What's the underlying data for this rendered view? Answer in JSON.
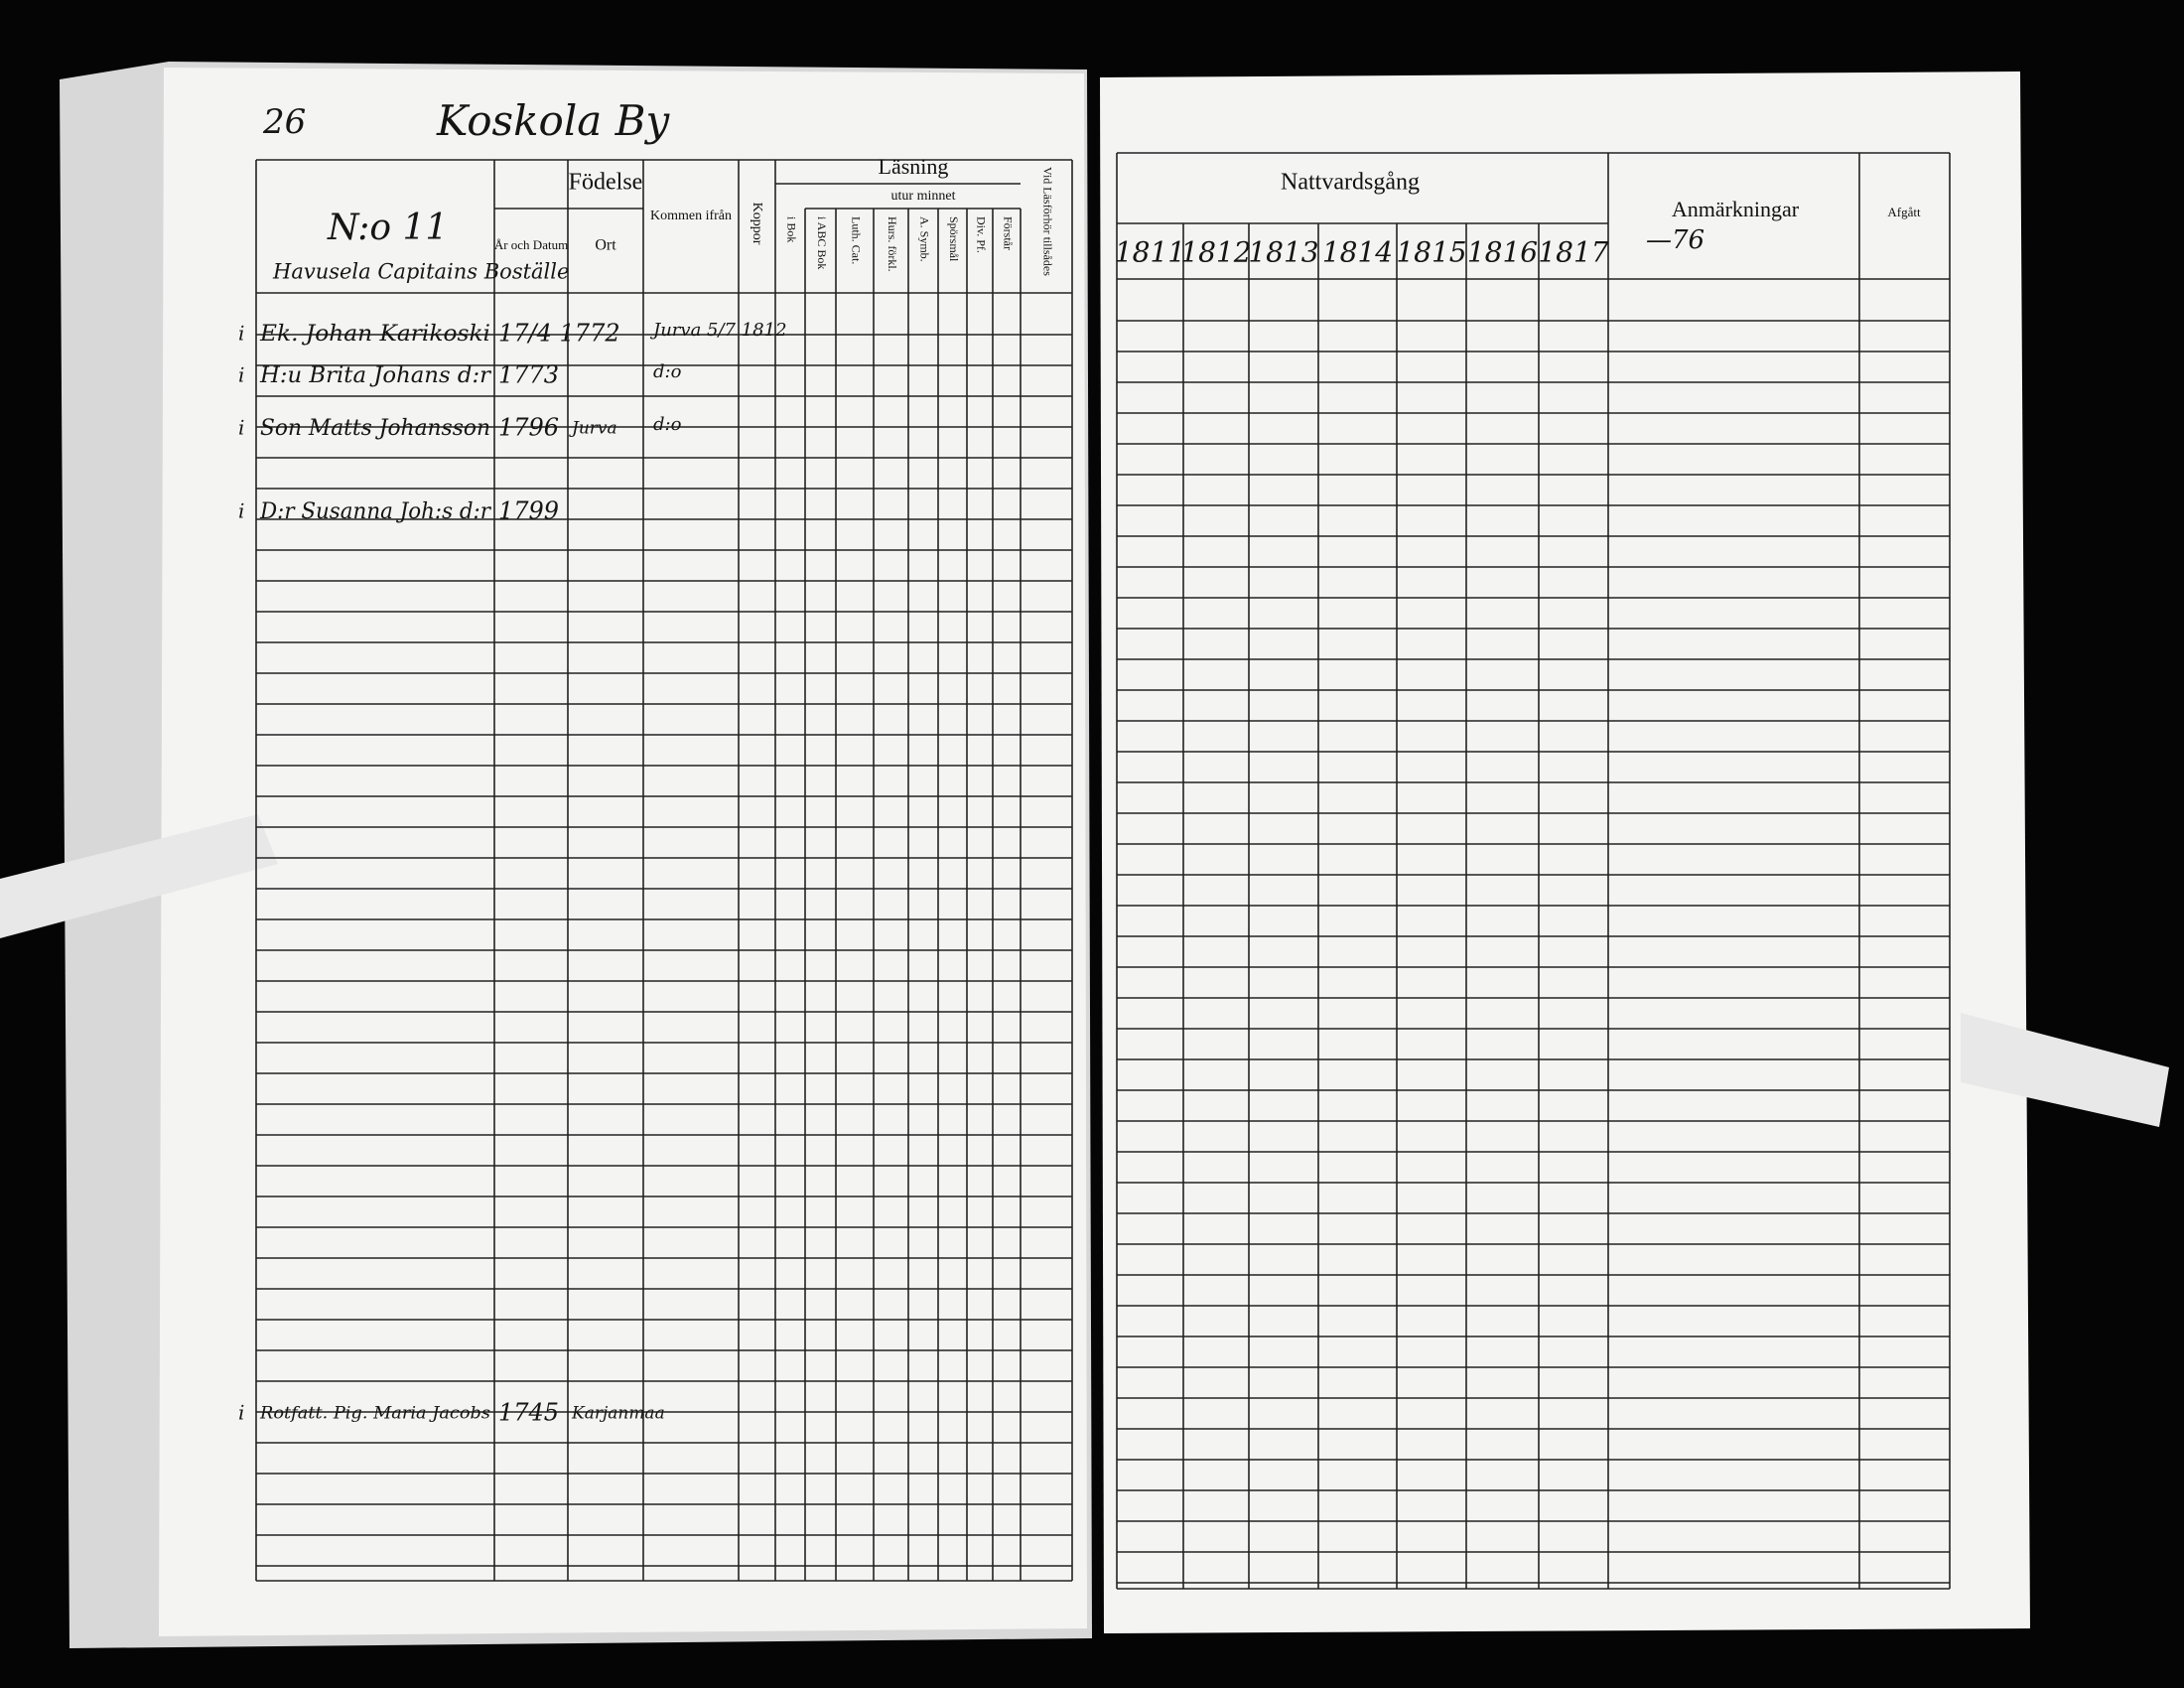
{
  "header": {
    "page_number": "26",
    "village": "Koskola By"
  },
  "left_table": {
    "birth": "Födelse",
    "birth_date": "År och Datum",
    "birth_place": "Ort",
    "came_from": "Kommen ifrån",
    "smallpox": "Koppor",
    "reading": "Läsning",
    "from_memory": "utur minnet",
    "reading_columns": [
      "i Bok",
      "i ABC Bok",
      "Luth. Cat.",
      "Hurs. förkl.",
      "A. Symb.",
      "Spörsmål",
      "Div. Pf.",
      "Förstår",
      "Vid Läsförhör tillsådes"
    ]
  },
  "household": {
    "number": "N:o 11",
    "place": "Havusela Capitains Boställe"
  },
  "rows": [
    {
      "mark": "i",
      "name": "Ek. Johan Karikoski",
      "birth_date": "17/4 1772",
      "came_from": "Jurva 5/7 1812"
    },
    {
      "mark": "i",
      "name": "H:u Brita Johans d:r",
      "birth_date": "1773",
      "came_from": "d:o"
    },
    {
      "mark": "i",
      "name": "Son Matts Johansson",
      "birth_date": "1796",
      "birth_place": "Jurva",
      "came_from": "d:o"
    },
    {
      "mark": "i",
      "name": "D:r Susanna Joh:s d:r",
      "birth_date": "1799"
    },
    {
      "mark": "i",
      "name": "Rotfatt. Pig. Maria Jacobs",
      "birth_date": "1745",
      "birth_place": "Karjanmaa"
    }
  ],
  "right_table": {
    "communion": "Nattvardsgång",
    "years": [
      "1811",
      "1812",
      "1813",
      "1814",
      "1815",
      "1816",
      "1817"
    ],
    "remarks": "Anmärkningar",
    "remarks_note": "—76",
    "departed": "Afgått"
  }
}
